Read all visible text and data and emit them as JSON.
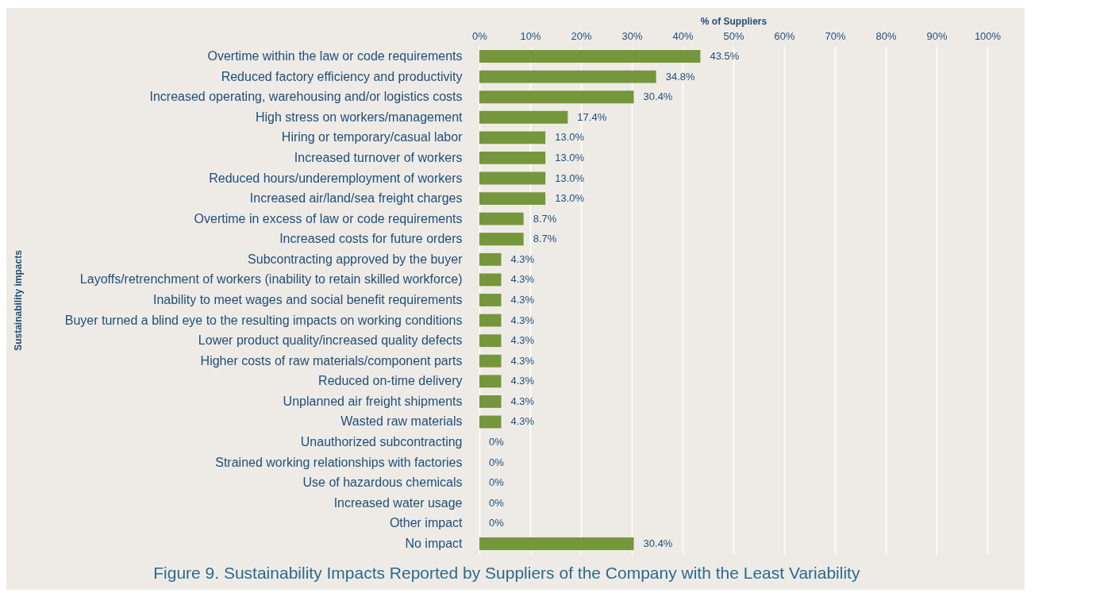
{
  "chart_data": {
    "type": "bar",
    "orientation": "horizontal",
    "title": "Figure 9. Sustainability Impacts Reported by Suppliers of the Company with the Least Variability",
    "xlabel": "% of Suppliers",
    "ylabel": "Sustainability impacts",
    "categories": [
      "Overtime within the law or code requirements",
      "Reduced factory efficiency and productivity",
      "Increased operating, warehousing and/or logistics costs",
      "High stress on workers/management",
      "Hiring or temporary/casual labor",
      "Increased turnover of workers",
      "Reduced hours/underemployment of workers",
      "Increased air/land/sea freight charges",
      "Overtime in excess of law or code requirements",
      "Increased costs for future orders",
      "Subcontracting approved by the buyer",
      "Layoffs/retrenchment of workers (inability to retain skilled workforce)",
      "Inability to meet wages and social benefit requirements",
      "Buyer turned a blind eye to the resulting impacts on working conditions",
      "Lower product quality/increased quality defects",
      "Higher costs of raw materials/component parts",
      "Reduced on-time delivery",
      "Unplanned air freight shipments",
      "Wasted raw materials",
      "Unauthorized subcontracting",
      "Strained working relationships with factories",
      "Use of hazardous chemicals",
      "Increased water usage",
      "Other impact",
      "No impact"
    ],
    "values": [
      43.5,
      34.8,
      30.4,
      17.4,
      13.0,
      13.0,
      13.0,
      13.0,
      8.7,
      8.7,
      4.3,
      4.3,
      4.3,
      4.3,
      4.3,
      4.3,
      4.3,
      4.3,
      4.3,
      0,
      0,
      0,
      0,
      0,
      30.4
    ],
    "value_labels": [
      "43.5%",
      "34.8%",
      "30.4%",
      "17.4%",
      "13.0%",
      "13.0%",
      "13.0%",
      "13.0%",
      "8.7%",
      "8.7%",
      "4.3%",
      "4.3%",
      "4.3%",
      "4.3%",
      "4.3%",
      "4.3%",
      "4.3%",
      "4.3%",
      "4.3%",
      "0%",
      "0%",
      "0%",
      "0%",
      "0%",
      "30.4%"
    ],
    "color": "#76963b",
    "xlim": [
      0,
      100
    ],
    "xticks": [
      {
        "value": 0,
        "label": "0%"
      },
      {
        "value": 10,
        "label": "10%"
      },
      {
        "value": 20,
        "label": "20%"
      },
      {
        "value": 30,
        "label": "30%"
      },
      {
        "value": 40,
        "label": "40%"
      },
      {
        "value": 50,
        "label": "50%"
      },
      {
        "value": 60,
        "label": "60%"
      },
      {
        "value": 70,
        "label": "70%"
      },
      {
        "value": 80,
        "label": "80%"
      },
      {
        "value": 90,
        "label": "90%"
      },
      {
        "value": 100,
        "label": "100%"
      }
    ],
    "grid": "x"
  }
}
